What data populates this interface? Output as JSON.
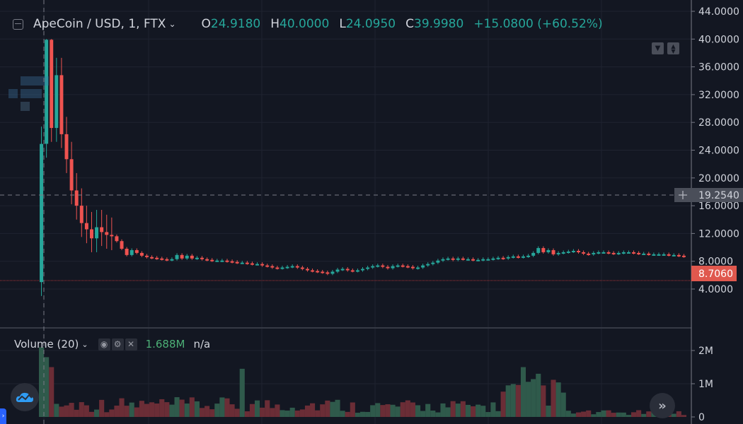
{
  "header": {
    "symbol_title": "ApeCoin / USD, 1, FTX",
    "ohlc": [
      {
        "key": "O",
        "value": "24.9180"
      },
      {
        "key": "H",
        "value": "40.0000"
      },
      {
        "key": "L",
        "value": "24.0950"
      },
      {
        "key": "C",
        "value": "39.9980"
      }
    ],
    "change": "+15.0800 (+60.52%)"
  },
  "volume_legend": {
    "label": "Volume (20)",
    "value": "1.688M",
    "ma_value": "n/a"
  },
  "price_axis": {
    "ticks": [
      "44.0000",
      "40.0000",
      "36.0000",
      "32.0000",
      "28.0000",
      "24.0000",
      "20.0000",
      "16.0000",
      "12.0000",
      "8.0000",
      "4.0000"
    ],
    "crosshair_label": "19.2540",
    "last_price_label": "8.7060"
  },
  "volume_axis": {
    "ticks": [
      "2M",
      "1M",
      "0"
    ]
  },
  "colors": {
    "background": "#131722",
    "up": "#26a69a",
    "down": "#ef5350",
    "vol_up": "#2f5a4b",
    "vol_down": "#6b2d36",
    "grid": "#1f2330",
    "axis_text": "#d1d4dc",
    "last_price_bg": "#e0584e",
    "crosshair_bg": "#4a4e59"
  },
  "chart_data": {
    "type": "candlestick",
    "title": "ApeCoin / USD, 1, FTX",
    "interval": "1 minute",
    "ylim": [
      2.0,
      44.5
    ],
    "ytick_values": [
      4,
      8,
      12,
      16,
      20,
      24,
      28,
      32,
      36,
      40,
      44
    ],
    "crosshair_price": 19.254,
    "last_price": 8.706,
    "hovered_candle": {
      "open": 24.918,
      "high": 40.0,
      "low": 24.095,
      "close": 39.998,
      "change": 15.08,
      "change_pct": 60.52
    },
    "candles_approx_close": [
      24.9,
      39.9,
      27.2,
      34.8,
      26.3,
      22.7,
      18.2,
      16.0,
      13.5,
      12.6,
      11.3,
      12.9,
      12.2,
      11.8,
      11.6,
      10.9,
      9.8,
      8.9,
      9.6,
      9.2,
      8.8,
      8.6,
      8.5,
      8.4,
      8.3,
      8.2,
      8.3,
      8.9,
      8.4,
      8.8,
      8.4,
      8.5,
      8.3,
      8.2,
      8.1,
      8.1,
      8.1,
      8.0,
      7.9,
      7.8,
      7.8,
      7.7,
      7.6,
      7.6,
      7.4,
      7.3,
      7.1,
      7.0,
      7.1,
      7.2,
      7.3,
      7.1,
      6.9,
      6.7,
      6.6,
      6.5,
      6.4,
      6.2,
      6.5,
      6.8,
      6.9,
      6.7,
      6.6,
      6.7,
      6.9,
      7.1,
      7.3,
      7.4,
      7.2,
      7.0,
      7.3,
      7.4,
      7.3,
      7.2,
      7.0,
      7.1,
      7.4,
      7.6,
      7.8,
      8.1,
      8.3,
      8.4,
      8.2,
      8.4,
      8.3,
      8.3,
      8.2,
      8.2,
      8.3,
      8.3,
      8.4,
      8.5,
      8.4,
      8.6,
      8.7,
      8.6,
      8.7,
      8.8,
      9.2,
      9.9,
      9.3,
      9.6,
      9.0,
      9.2,
      9.3,
      9.4,
      9.5,
      9.3,
      9.1,
      9.0,
      9.2,
      9.3,
      9.3,
      9.2,
      9.1,
      9.2,
      9.3,
      9.3,
      9.2,
      9.1,
      9.1,
      9.0,
      9.0,
      9.0,
      9.0,
      8.9,
      8.9,
      8.8,
      8.7
    ],
    "volume": {
      "label": "Volume (20)",
      "ylim": [
        0,
        2300000
      ],
      "ytick_values": [
        0,
        1000000,
        2000000
      ],
      "latest_value": 1688000
    }
  }
}
